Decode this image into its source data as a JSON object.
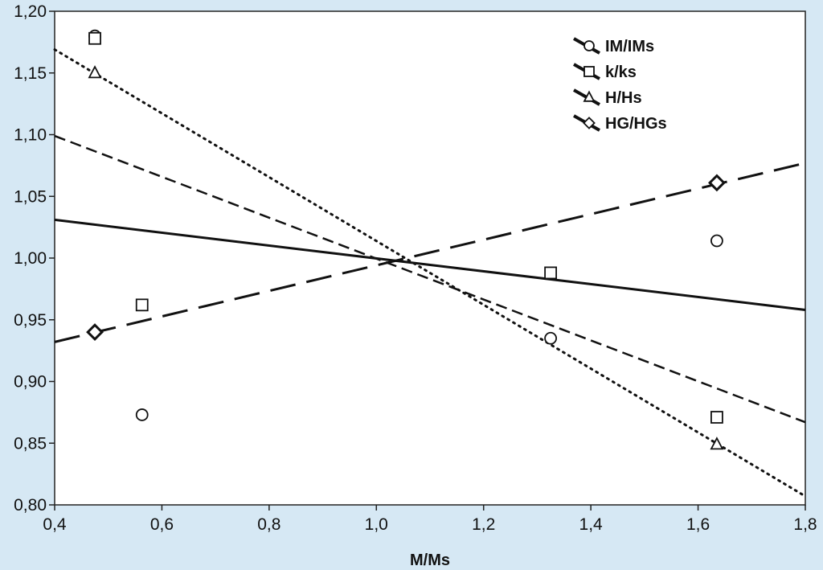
{
  "chart_data": {
    "type": "scatter",
    "xlabel": "M/Ms",
    "ylabel": "",
    "xlim": [
      0.4,
      1.8
    ],
    "ylim": [
      0.8,
      1.2
    ],
    "x_ticks": [
      "0,4",
      "0,6",
      "0,8",
      "1,0",
      "1,2",
      "1,4",
      "1,6",
      "1,8"
    ],
    "y_ticks": [
      "0,80",
      "0,85",
      "0,90",
      "0,95",
      "1,00",
      "1,05",
      "1,10",
      "1,15",
      "1,20"
    ],
    "x_tick_values": [
      0.4,
      0.6,
      0.8,
      1.0,
      1.2,
      1.4,
      1.6,
      1.8
    ],
    "y_tick_values": [
      0.8,
      0.85,
      0.9,
      0.95,
      1.0,
      1.05,
      1.1,
      1.15,
      1.2
    ],
    "grid": false,
    "legend_position": "top-right",
    "series": [
      {
        "name": "IM/IMs",
        "marker": "circle",
        "line": "solid",
        "points": [
          [
            0.475,
            1.18
          ],
          [
            0.563,
            0.873
          ],
          [
            1.325,
            0.935
          ],
          [
            1.635,
            1.014
          ]
        ],
        "fit": [
          [
            0.4,
            1.031
          ],
          [
            1.8,
            0.958
          ]
        ]
      },
      {
        "name": "k/ks",
        "marker": "square",
        "line": "dash",
        "points": [
          [
            0.475,
            1.178
          ],
          [
            0.563,
            0.962
          ],
          [
            1.325,
            0.988
          ],
          [
            1.635,
            0.871
          ]
        ],
        "fit": [
          [
            0.4,
            1.099
          ],
          [
            1.8,
            0.867
          ]
        ]
      },
      {
        "name": "H/Hs",
        "marker": "triangle",
        "line": "dot",
        "points": [
          [
            0.475,
            1.15
          ],
          [
            1.635,
            0.849
          ]
        ],
        "fit": [
          [
            0.4,
            1.169
          ],
          [
            1.8,
            0.807
          ]
        ]
      },
      {
        "name": "HG/HGs",
        "marker": "diamond",
        "line": "longdash",
        "points": [
          [
            0.475,
            0.94
          ],
          [
            1.635,
            1.061
          ]
        ],
        "fit": [
          [
            0.4,
            0.932
          ],
          [
            1.8,
            1.077
          ]
        ]
      }
    ]
  }
}
